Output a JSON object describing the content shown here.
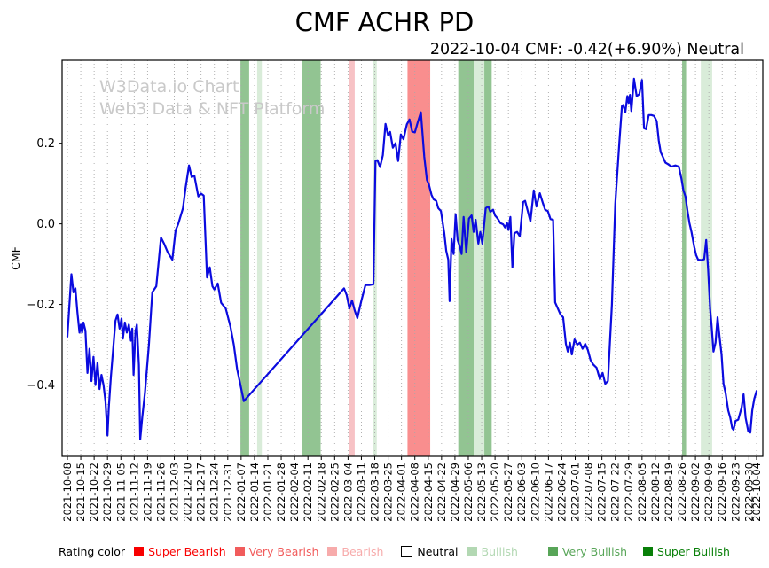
{
  "header": {
    "title": "CMF ACHR PD",
    "subtitle": "2022-10-04 CMF: -0.42(+6.90%) Neutral"
  },
  "watermark": {
    "line1": "W3Data.io Chart",
    "line2": "Web3 Data & NFT Platform"
  },
  "legend": {
    "label": "Rating color",
    "items": [
      {
        "label": "Super Bearish",
        "key": "super_bearish"
      },
      {
        "label": "Very Bearish",
        "key": "very_bearish"
      },
      {
        "label": "Bearish",
        "key": "bearish"
      },
      {
        "label": "Neutral",
        "key": "neutral"
      },
      {
        "label": "Bullish",
        "key": "bullish"
      },
      {
        "label": "Very Bullish",
        "key": "very_bullish"
      },
      {
        "label": "Super Bullish",
        "key": "super_bullish"
      }
    ]
  },
  "rating_colors": {
    "super_bearish": "#f80000",
    "very_bearish": "#f15c5c",
    "bearish": "#f7abab",
    "neutral": "#ffffff",
    "bullish": "#b3d8b3",
    "very_bullish": "#58a558",
    "super_bullish": "#087f08"
  },
  "band_colors": {
    "very_bearish": "#f98e8e",
    "bearish": "#f7c2c5",
    "bullish": "#d9ecd9",
    "very_bullish": "#92c492"
  },
  "chart_data": {
    "type": "line",
    "title": "CMF ACHR PD",
    "subtitle": "2022-10-04 CMF: -0.42(+6.90%) Neutral",
    "xlabel": "",
    "ylabel": "CMF",
    "grid": true,
    "legend_position": "bottom",
    "line_color": "#0b0bdf",
    "grid_color": "#a8a8a8",
    "ylim": [
      -0.577,
      0.406
    ],
    "y_ticks": [
      {
        "v": 0.2,
        "label": "0.2"
      },
      {
        "v": 0.0,
        "label": "0.0"
      },
      {
        "v": -0.2,
        "label": "−0.2"
      },
      {
        "v": -0.4,
        "label": "−0.4"
      }
    ],
    "x_tick_labels": [
      "2021-10-08",
      "2021-10-15",
      "2021-10-22",
      "2021-10-29",
      "2021-11-05",
      "2021-11-12",
      "2021-11-19",
      "2021-11-26",
      "2021-12-03",
      "2021-12-10",
      "2021-12-17",
      "2021-12-24",
      "2021-12-31",
      "2022-01-07",
      "2022-01-14",
      "2022-01-21",
      "2022-01-28",
      "2022-02-04",
      "2022-02-11",
      "2022-02-18",
      "2022-02-25",
      "2022-03-04",
      "2022-03-11",
      "2022-03-18",
      "2022-03-25",
      "2022-04-01",
      "2022-04-08",
      "2022-04-15",
      "2022-04-22",
      "2022-04-29",
      "2022-05-06",
      "2022-05-13",
      "2022-05-20",
      "2022-05-27",
      "2022-06-03",
      "2022-06-10",
      "2022-06-17",
      "2022-06-24",
      "2022-07-01",
      "2022-07-08",
      "2022-07-15",
      "2022-07-22",
      "2022-07-29",
      "2022-08-05",
      "2022-08-12",
      "2022-08-19",
      "2022-08-26",
      "2022-09-02",
      "2022-09-09",
      "2022-09-16",
      "2022-09-23",
      "2022-09-30",
      "2022-10-04"
    ],
    "x_axis_weeks_total": 51.571,
    "bands": [
      {
        "from_week": 12.95,
        "to_week": 13.6,
        "rating": "very_bullish"
      },
      {
        "from_week": 14.2,
        "to_week": 14.55,
        "rating": "bullish"
      },
      {
        "from_week": 17.55,
        "to_week": 18.95,
        "rating": "very_bullish"
      },
      {
        "from_week": 21.1,
        "to_week": 21.5,
        "rating": "bearish"
      },
      {
        "from_week": 22.85,
        "to_week": 23.15,
        "rating": "bullish"
      },
      {
        "from_week": 25.45,
        "to_week": 27.15,
        "rating": "very_bearish"
      },
      {
        "from_week": 29.25,
        "to_week": 30.4,
        "rating": "very_bullish"
      },
      {
        "from_week": 30.4,
        "to_week": 31.2,
        "rating": "bullish"
      },
      {
        "from_week": 31.2,
        "to_week": 31.75,
        "rating": "very_bullish"
      },
      {
        "from_week": 46.0,
        "to_week": 46.3,
        "rating": "very_bullish"
      },
      {
        "from_week": 47.4,
        "to_week": 48.25,
        "rating": "bullish"
      }
    ],
    "series": [
      {
        "name": "CMF",
        "points": [
          [
            0,
            -0.28
          ],
          [
            0.15,
            -0.2
          ],
          [
            0.3,
            -0.125
          ],
          [
            0.45,
            -0.17
          ],
          [
            0.6,
            -0.16
          ],
          [
            0.75,
            -0.22
          ],
          [
            0.9,
            -0.27
          ],
          [
            1.0,
            -0.25
          ],
          [
            1.1,
            -0.27
          ],
          [
            1.2,
            -0.245
          ],
          [
            1.35,
            -0.265
          ],
          [
            1.5,
            -0.37
          ],
          [
            1.65,
            -0.31
          ],
          [
            1.8,
            -0.39
          ],
          [
            1.95,
            -0.33
          ],
          [
            2.1,
            -0.4
          ],
          [
            2.25,
            -0.345
          ],
          [
            2.4,
            -0.41
          ],
          [
            2.55,
            -0.375
          ],
          [
            2.7,
            -0.4
          ],
          [
            2.85,
            -0.44
          ],
          [
            3.0,
            -0.525
          ],
          [
            3.1,
            -0.455
          ],
          [
            3.25,
            -0.38
          ],
          [
            3.45,
            -0.3
          ],
          [
            3.6,
            -0.24
          ],
          [
            3.75,
            -0.225
          ],
          [
            3.9,
            -0.26
          ],
          [
            4.05,
            -0.235
          ],
          [
            4.15,
            -0.285
          ],
          [
            4.3,
            -0.245
          ],
          [
            4.45,
            -0.27
          ],
          [
            4.6,
            -0.25
          ],
          [
            4.75,
            -0.29
          ],
          [
            4.85,
            -0.26
          ],
          [
            4.95,
            -0.375
          ],
          [
            5.1,
            -0.265
          ],
          [
            5.2,
            -0.25
          ],
          [
            5.35,
            -0.35
          ],
          [
            5.45,
            -0.535
          ],
          [
            5.6,
            -0.48
          ],
          [
            5.8,
            -0.42
          ],
          [
            6.1,
            -0.3
          ],
          [
            6.35,
            -0.17
          ],
          [
            6.55,
            -0.16
          ],
          [
            6.65,
            -0.155
          ],
          [
            7.0,
            -0.034
          ],
          [
            7.25,
            -0.05
          ],
          [
            7.5,
            -0.07
          ],
          [
            7.85,
            -0.089
          ],
          [
            8.1,
            -0.016
          ],
          [
            8.3,
            0.0
          ],
          [
            8.65,
            0.039
          ],
          [
            8.85,
            0.09
          ],
          [
            9.1,
            0.145
          ],
          [
            9.3,
            0.116
          ],
          [
            9.5,
            0.12
          ],
          [
            9.8,
            0.068
          ],
          [
            10.0,
            0.075
          ],
          [
            10.2,
            0.07
          ],
          [
            10.45,
            -0.133
          ],
          [
            10.65,
            -0.108
          ],
          [
            10.85,
            -0.155
          ],
          [
            11.0,
            -0.163
          ],
          [
            11.25,
            -0.148
          ],
          [
            11.5,
            -0.196
          ],
          [
            11.85,
            -0.21
          ],
          [
            12.2,
            -0.255
          ],
          [
            12.45,
            -0.3
          ],
          [
            12.7,
            -0.36
          ],
          [
            12.95,
            -0.4
          ],
          [
            13.2,
            -0.44
          ],
          [
            20.7,
            -0.16
          ],
          [
            20.9,
            -0.177
          ],
          [
            21.1,
            -0.21
          ],
          [
            21.3,
            -0.19
          ],
          [
            21.5,
            -0.215
          ],
          [
            21.7,
            -0.234
          ],
          [
            22.0,
            -0.19
          ],
          [
            22.3,
            -0.152
          ],
          [
            22.6,
            -0.152
          ],
          [
            22.9,
            -0.15
          ],
          [
            23.05,
            0.156
          ],
          [
            23.2,
            0.158
          ],
          [
            23.4,
            0.141
          ],
          [
            23.6,
            0.17
          ],
          [
            23.8,
            0.248
          ],
          [
            24.0,
            0.219
          ],
          [
            24.15,
            0.228
          ],
          [
            24.35,
            0.189
          ],
          [
            24.55,
            0.2
          ],
          [
            24.75,
            0.156
          ],
          [
            24.95,
            0.222
          ],
          [
            25.15,
            0.21
          ],
          [
            25.4,
            0.247
          ],
          [
            25.6,
            0.259
          ],
          [
            25.8,
            0.229
          ],
          [
            26.0,
            0.227
          ],
          [
            26.2,
            0.25
          ],
          [
            26.45,
            0.277
          ],
          [
            26.7,
            0.167
          ],
          [
            26.9,
            0.109
          ],
          [
            27.05,
            0.098
          ],
          [
            27.25,
            0.072
          ],
          [
            27.4,
            0.061
          ],
          [
            27.6,
            0.057
          ],
          [
            27.75,
            0.039
          ],
          [
            27.95,
            0.032
          ],
          [
            28.2,
            -0.023
          ],
          [
            28.35,
            -0.067
          ],
          [
            28.5,
            -0.089
          ],
          [
            28.6,
            -0.192
          ],
          [
            28.75,
            -0.038
          ],
          [
            28.9,
            -0.075
          ],
          [
            29.05,
            0.024
          ],
          [
            29.2,
            -0.04
          ],
          [
            29.4,
            -0.06
          ],
          [
            29.5,
            -0.075
          ],
          [
            29.65,
            0.017
          ],
          [
            29.85,
            -0.071
          ],
          [
            30.05,
            0.013
          ],
          [
            30.25,
            0.021
          ],
          [
            30.4,
            -0.02
          ],
          [
            30.55,
            0.01
          ],
          [
            30.75,
            -0.049
          ],
          [
            30.9,
            -0.02
          ],
          [
            31.05,
            -0.049
          ],
          [
            31.3,
            0.039
          ],
          [
            31.5,
            0.043
          ],
          [
            31.65,
            0.03
          ],
          [
            31.85,
            0.035
          ],
          [
            32.0,
            0.021
          ],
          [
            32.2,
            0.013
          ],
          [
            32.4,
            0.002
          ],
          [
            32.6,
            -0.001
          ],
          [
            32.75,
            -0.009
          ],
          [
            32.9,
            0.002
          ],
          [
            33.0,
            -0.015
          ],
          [
            33.15,
            0.017
          ],
          [
            33.3,
            -0.108
          ],
          [
            33.45,
            -0.023
          ],
          [
            33.65,
            -0.02
          ],
          [
            33.85,
            -0.031
          ],
          [
            34.1,
            0.054
          ],
          [
            34.25,
            0.057
          ],
          [
            34.45,
            0.032
          ],
          [
            34.65,
            0.006
          ],
          [
            34.9,
            0.083
          ],
          [
            35.1,
            0.043
          ],
          [
            35.35,
            0.076
          ],
          [
            35.6,
            0.05
          ],
          [
            35.75,
            0.035
          ],
          [
            35.95,
            0.032
          ],
          [
            36.15,
            0.012
          ],
          [
            36.35,
            0.01
          ],
          [
            36.5,
            -0.195
          ],
          [
            36.7,
            -0.21
          ],
          [
            36.9,
            -0.225
          ],
          [
            37.1,
            -0.232
          ],
          [
            37.3,
            -0.298
          ],
          [
            37.45,
            -0.317
          ],
          [
            37.6,
            -0.295
          ],
          [
            37.75,
            -0.324
          ],
          [
            37.95,
            -0.287
          ],
          [
            38.15,
            -0.3
          ],
          [
            38.35,
            -0.295
          ],
          [
            38.55,
            -0.31
          ],
          [
            38.75,
            -0.298
          ],
          [
            38.95,
            -0.313
          ],
          [
            39.15,
            -0.338
          ],
          [
            39.35,
            -0.349
          ],
          [
            39.6,
            -0.357
          ],
          [
            39.85,
            -0.386
          ],
          [
            40.05,
            -0.37
          ],
          [
            40.25,
            -0.397
          ],
          [
            40.45,
            -0.39
          ],
          [
            40.75,
            -0.2
          ],
          [
            41.0,
            0.05
          ],
          [
            41.3,
            0.2
          ],
          [
            41.5,
            0.292
          ],
          [
            41.6,
            0.295
          ],
          [
            41.75,
            0.277
          ],
          [
            41.9,
            0.317
          ],
          [
            42.0,
            0.3
          ],
          [
            42.1,
            0.32
          ],
          [
            42.2,
            0.28
          ],
          [
            42.4,
            0.36
          ],
          [
            42.6,
            0.317
          ],
          [
            42.8,
            0.322
          ],
          [
            43.0,
            0.357
          ],
          [
            43.15,
            0.237
          ],
          [
            43.3,
            0.235
          ],
          [
            43.5,
            0.27
          ],
          [
            43.7,
            0.27
          ],
          [
            43.9,
            0.268
          ],
          [
            44.1,
            0.255
          ],
          [
            44.25,
            0.207
          ],
          [
            44.4,
            0.178
          ],
          [
            44.55,
            0.167
          ],
          [
            44.75,
            0.152
          ],
          [
            44.95,
            0.148
          ],
          [
            45.2,
            0.142
          ],
          [
            45.5,
            0.145
          ],
          [
            45.75,
            0.142
          ],
          [
            45.95,
            0.112
          ],
          [
            46.1,
            0.083
          ],
          [
            46.25,
            0.068
          ],
          [
            46.4,
            0.032
          ],
          [
            46.55,
            0.002
          ],
          [
            46.7,
            -0.02
          ],
          [
            46.9,
            -0.056
          ],
          [
            47.05,
            -0.078
          ],
          [
            47.2,
            -0.089
          ],
          [
            47.45,
            -0.09
          ],
          [
            47.65,
            -0.088
          ],
          [
            47.8,
            -0.04
          ],
          [
            47.95,
            -0.115
          ],
          [
            48.1,
            -0.214
          ],
          [
            48.2,
            -0.251
          ],
          [
            48.35,
            -0.317
          ],
          [
            48.5,
            -0.295
          ],
          [
            48.65,
            -0.232
          ],
          [
            48.8,
            -0.28
          ],
          [
            48.95,
            -0.324
          ],
          [
            49.1,
            -0.397
          ],
          [
            49.25,
            -0.419
          ],
          [
            49.45,
            -0.463
          ],
          [
            49.6,
            -0.481
          ],
          [
            49.75,
            -0.507
          ],
          [
            49.85,
            -0.511
          ],
          [
            50.0,
            -0.489
          ],
          [
            50.2,
            -0.486
          ],
          [
            50.45,
            -0.456
          ],
          [
            50.6,
            -0.423
          ],
          [
            50.75,
            -0.481
          ],
          [
            50.95,
            -0.515
          ],
          [
            51.1,
            -0.518
          ],
          [
            51.25,
            -0.463
          ],
          [
            51.4,
            -0.434
          ],
          [
            51.57,
            -0.415
          ]
        ]
      }
    ]
  }
}
